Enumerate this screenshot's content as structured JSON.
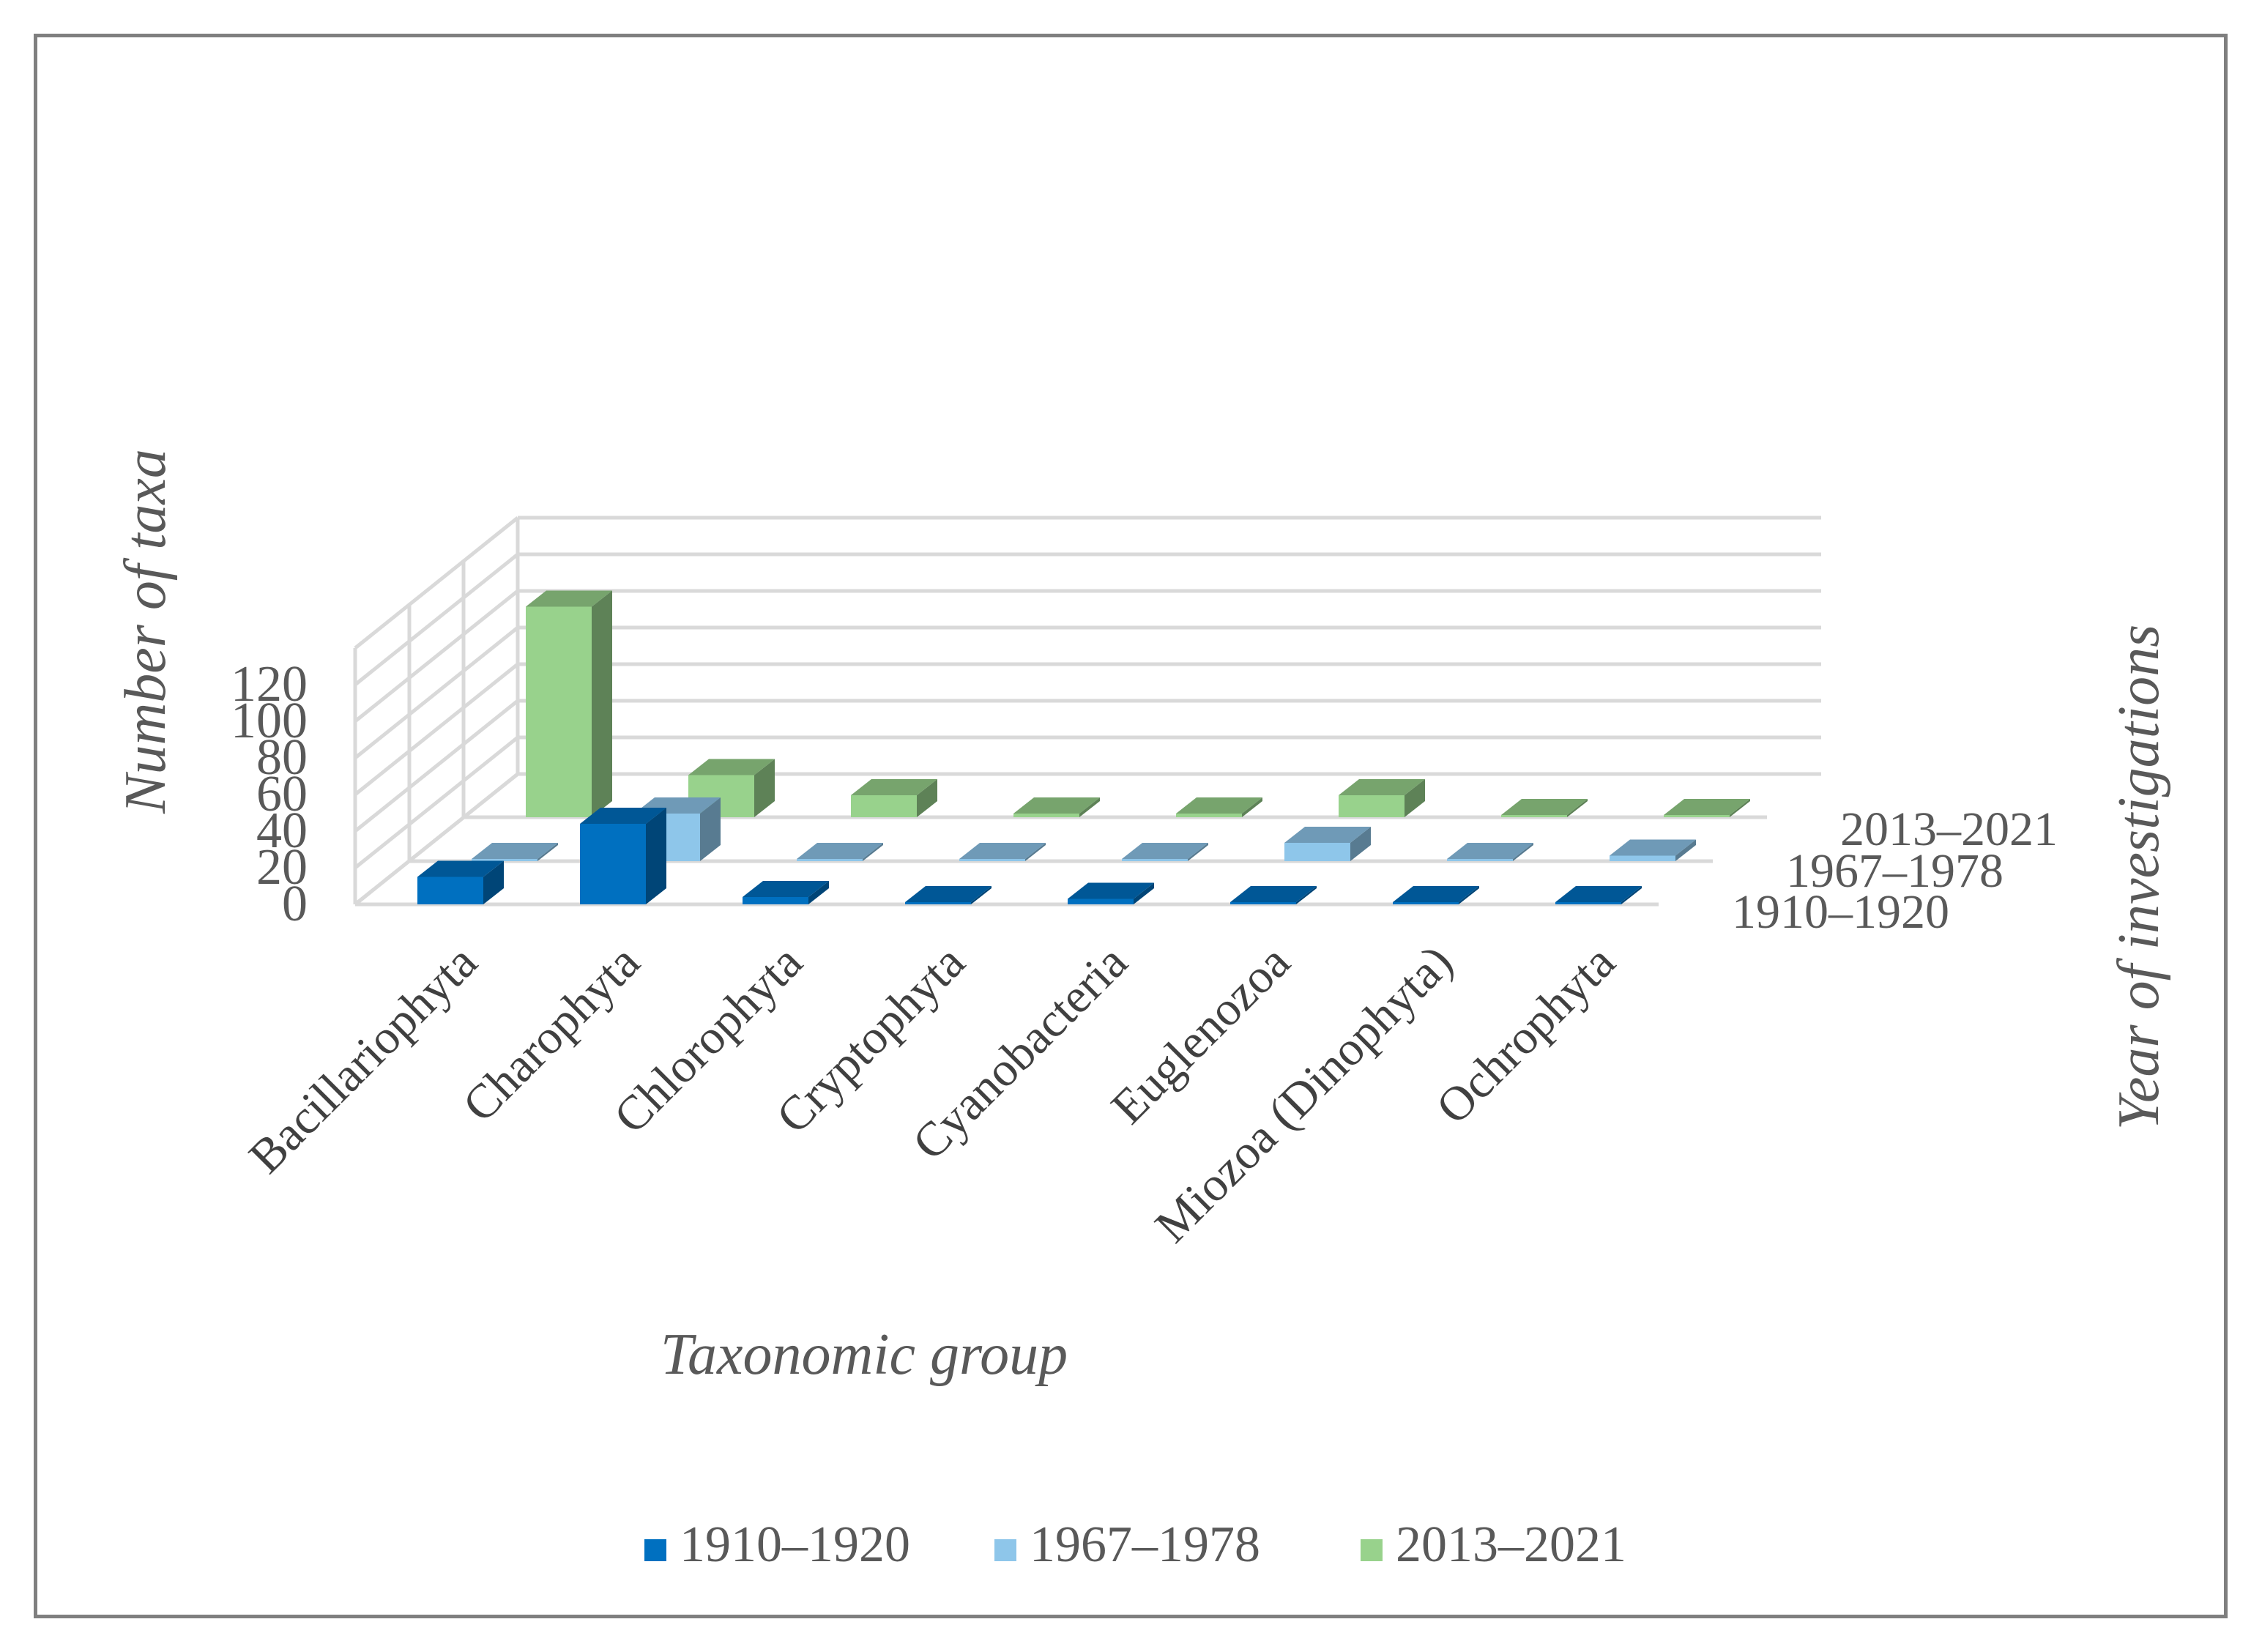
{
  "chart_data": {
    "type": "bar",
    "subtype": "3d-clustered-column",
    "xlabel": "Taxonomic group",
    "ylabel": "Number of taxa",
    "zlabel": "Year of investigations",
    "ylim": [
      0,
      140
    ],
    "yticks": [
      "0",
      "20",
      "40",
      "60",
      "80",
      "100",
      "120"
    ],
    "grid": true,
    "legend_position": "bottom",
    "categories": [
      "Bacillariophyta",
      "Charophyta",
      "Chlorophyta",
      "Cryptophyta",
      "Cyanobacteria",
      "Euglenozoa",
      "Miozoa (Dinophyta)",
      "Ochrophyta"
    ],
    "series": [
      {
        "name": "1910–1920",
        "color": "#0070c0",
        "values": [
          15,
          44,
          4,
          0,
          3,
          0,
          1,
          0
        ]
      },
      {
        "name": "1967–1978",
        "color": "#8ec6ea",
        "values": [
          0,
          26,
          0,
          1,
          0,
          10,
          0,
          3
        ]
      },
      {
        "name": "2013–2021",
        "color": "#98d28c",
        "values": [
          115,
          23,
          12,
          2,
          2,
          12,
          0,
          1
        ]
      }
    ]
  }
}
